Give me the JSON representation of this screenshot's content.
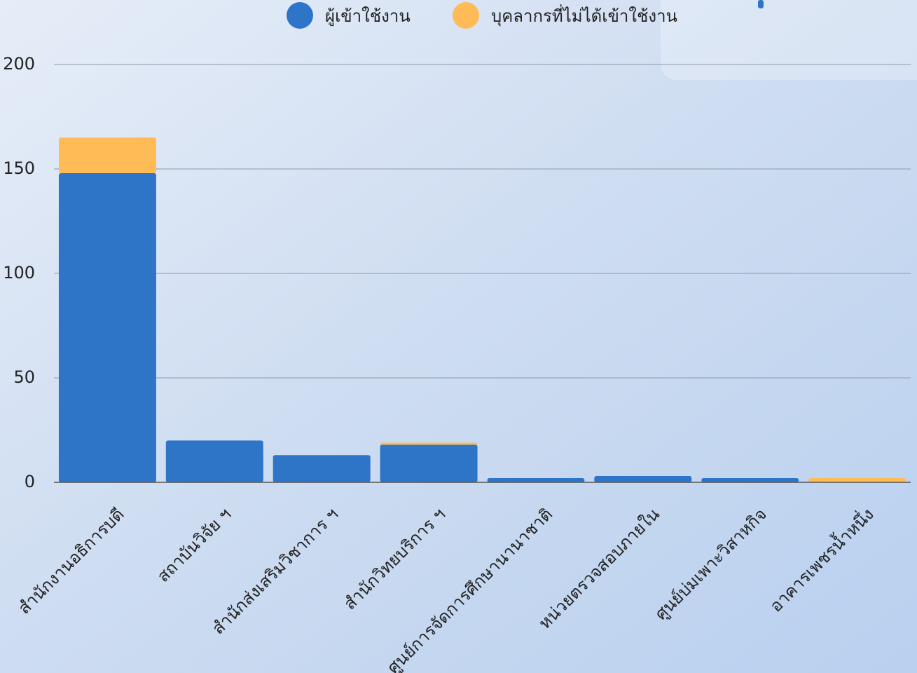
{
  "chart_data": {
    "type": "stacked_bar",
    "categories": [
      "สำนักงานอธิการบดี",
      "สถาบันวิจัย ฯ",
      "สำนักส่งเสริมวิชาการ ฯ",
      "สำนักวิทยบริการ ฯ",
      "ศูนย์การจัดการศึกษานานาชาติ",
      "หน่วยตรวจสอบภายใน",
      "ศูนย์บ่มเพาะวิสาหกิจ",
      "อาคารเพชรน้ำหนึ่ง"
    ],
    "series": [
      {
        "name": "ผู้เข้าใช้งาน",
        "color": "#2e75c8",
        "values": [
          148,
          20,
          13,
          18,
          2,
          3,
          2,
          0
        ]
      },
      {
        "name": "บุคลากรที่ไม่ได้เข้าใช้งาน",
        "color": "#ffbb55",
        "values": [
          17,
          0,
          0,
          1,
          0,
          0,
          0,
          2
        ]
      }
    ],
    "ylim": [
      0,
      200
    ],
    "yticks": [
      0,
      50,
      100,
      150,
      200
    ],
    "grid": true,
    "legend": "top"
  }
}
